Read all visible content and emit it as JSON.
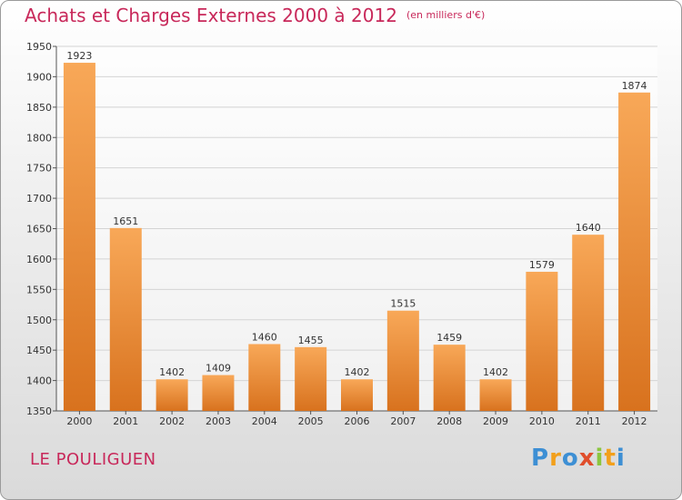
{
  "header": {
    "title": "Achats et Charges Externes 2000 à 2012",
    "unit": "(en milliers d'€)"
  },
  "footer": {
    "commune": "LE POULIGUEN",
    "logo": [
      "P",
      "r",
      "o",
      "x",
      "i",
      "t",
      "i"
    ]
  },
  "colors": {
    "title": "#c8285a",
    "bar_top": "#f8a858",
    "bar_bottom": "#d8721e",
    "grid": "#d4d4d4",
    "axis": "#555555",
    "logo": [
      "#3d8fd4",
      "#f2a01c",
      "#3d8fd4",
      "#e04e2c",
      "#8cc63f",
      "#f2a01c",
      "#3d8fd4"
    ]
  },
  "chart_data": {
    "type": "bar",
    "title": "Achats et Charges Externes 2000 à 2012",
    "subtitle": "(en milliers d'€)",
    "xlabel": "",
    "ylabel": "",
    "categories": [
      "2000",
      "2001",
      "2002",
      "2003",
      "2004",
      "2005",
      "2006",
      "2007",
      "2008",
      "2009",
      "2010",
      "2011",
      "2012"
    ],
    "values": [
      1923,
      1651,
      1402,
      1409,
      1460,
      1455,
      1402,
      1515,
      1459,
      1402,
      1579,
      1640,
      1874
    ],
    "ylim": [
      1350,
      1950
    ],
    "yticks": [
      1350,
      1400,
      1450,
      1500,
      1550,
      1600,
      1650,
      1700,
      1750,
      1800,
      1850,
      1900,
      1950
    ],
    "grid": true,
    "legend": "none"
  }
}
